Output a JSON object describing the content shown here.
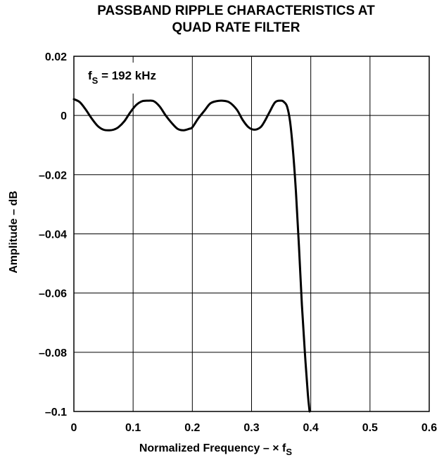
{
  "chart_data": {
    "type": "line",
    "title_line1": "PASSBAND RIPPLE CHARACTERISTICS AT",
    "title_line2": "QUAD RATE FILTER",
    "xlabel": "Normalized Frequency – × f",
    "xlabel_subscript": "S",
    "ylabel": "Amplitude – dB",
    "annotation": {
      "prefix": "f",
      "subscript": "S",
      "suffix": " = 192 kHz"
    },
    "xlim": [
      0,
      0.6
    ],
    "ylim": [
      -0.1,
      0.02
    ],
    "x_ticks": [
      "0",
      "0.1",
      "0.2",
      "0.3",
      "0.4",
      "0.5",
      "0.6"
    ],
    "y_ticks": [
      "0.02",
      "0",
      "–0.02",
      "–0.04",
      "–0.06",
      "–0.08",
      "–0.1"
    ],
    "x_tick_values": [
      0,
      0.1,
      0.2,
      0.3,
      0.4,
      0.5,
      0.6
    ],
    "y_tick_values": [
      0.02,
      0,
      -0.02,
      -0.04,
      -0.06,
      -0.08,
      -0.1
    ],
    "grid": true,
    "series": [
      {
        "x": [
          0.0,
          0.01,
          0.02,
          0.03,
          0.04,
          0.05,
          0.06,
          0.067,
          0.075,
          0.085,
          0.095,
          0.105,
          0.115,
          0.125,
          0.135,
          0.145,
          0.155,
          0.165,
          0.175,
          0.185,
          0.195,
          0.2,
          0.21,
          0.22,
          0.23,
          0.24,
          0.25,
          0.262,
          0.275,
          0.285,
          0.295,
          0.305,
          0.315,
          0.322,
          0.33,
          0.34,
          0.35,
          0.355,
          0.36,
          0.365,
          0.37,
          0.375,
          0.38,
          0.385,
          0.39,
          0.395,
          0.398
        ],
        "y": [
          0.0055,
          0.0045,
          0.002,
          -0.001,
          -0.0035,
          -0.0048,
          -0.005,
          -0.0048,
          -0.004,
          -0.002,
          0.001,
          0.0035,
          0.0048,
          0.005,
          0.0048,
          0.003,
          0.0,
          -0.0025,
          -0.0045,
          -0.005,
          -0.0045,
          -0.004,
          -0.001,
          0.0015,
          0.004,
          0.0048,
          0.005,
          0.0045,
          0.002,
          -0.0015,
          -0.004,
          -0.0048,
          -0.004,
          -0.002,
          0.001,
          0.0045,
          0.005,
          0.0045,
          0.003,
          -0.002,
          -0.012,
          -0.026,
          -0.044,
          -0.064,
          -0.08,
          -0.094,
          -0.1
        ]
      }
    ]
  }
}
